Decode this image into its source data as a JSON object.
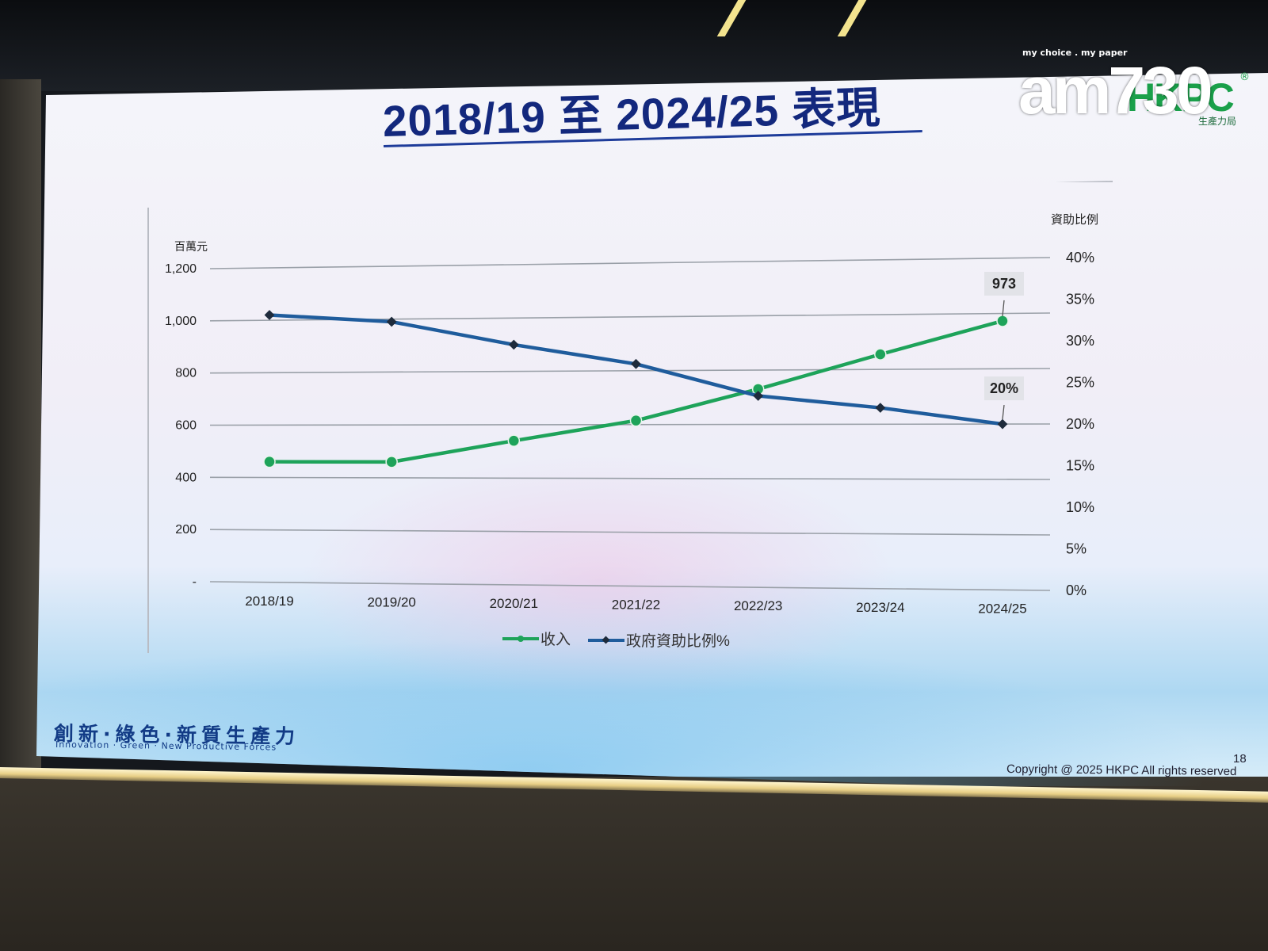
{
  "slide": {
    "title": "2018/19 至 2024/25 表現",
    "page_number": "18",
    "copyright": "Copyright @ 2025 HKPC All rights reserved",
    "slogan_cn": "創新·綠色·新質生產力",
    "slogan_en": "Innovation · Green · New Productive Forces"
  },
  "logo": {
    "hkpc_text": "HKPC",
    "hkpc_sub": "生產力局",
    "mark": "®"
  },
  "watermark": {
    "tagline": "my choice . my paper",
    "text": "am730"
  },
  "colors": {
    "income": "#1ea35a",
    "ratio": "#1f5c9c",
    "title": "#13287d",
    "grid": "#9aa0a8"
  },
  "chart_data": {
    "type": "line",
    "categories": [
      "2018/19",
      "2019/20",
      "2020/21",
      "2021/22",
      "2022/23",
      "2023/24",
      "2024/25"
    ],
    "y_left": {
      "unit_label": "百萬元",
      "range": [
        0,
        1200
      ],
      "ticks": [
        "-",
        "200",
        "400",
        "600",
        "800",
        "1,000",
        "1,200"
      ]
    },
    "y_right": {
      "unit_label": "資助比例",
      "range": [
        0,
        40
      ],
      "ticks": [
        "0%",
        "5%",
        "10%",
        "15%",
        "20%",
        "25%",
        "30%",
        "35%",
        "40%"
      ]
    },
    "series": [
      {
        "name": "收入",
        "axis": "left",
        "values": [
          460,
          460,
          540,
          615,
          730,
          855,
          973
        ],
        "end_label": "973"
      },
      {
        "name": "政府資助比例%",
        "axis": "right",
        "values": [
          34,
          33,
          30,
          27.5,
          23.5,
          22,
          20
        ],
        "end_label": "20%"
      }
    ],
    "legend_position": "bottom-center",
    "grid": true
  }
}
